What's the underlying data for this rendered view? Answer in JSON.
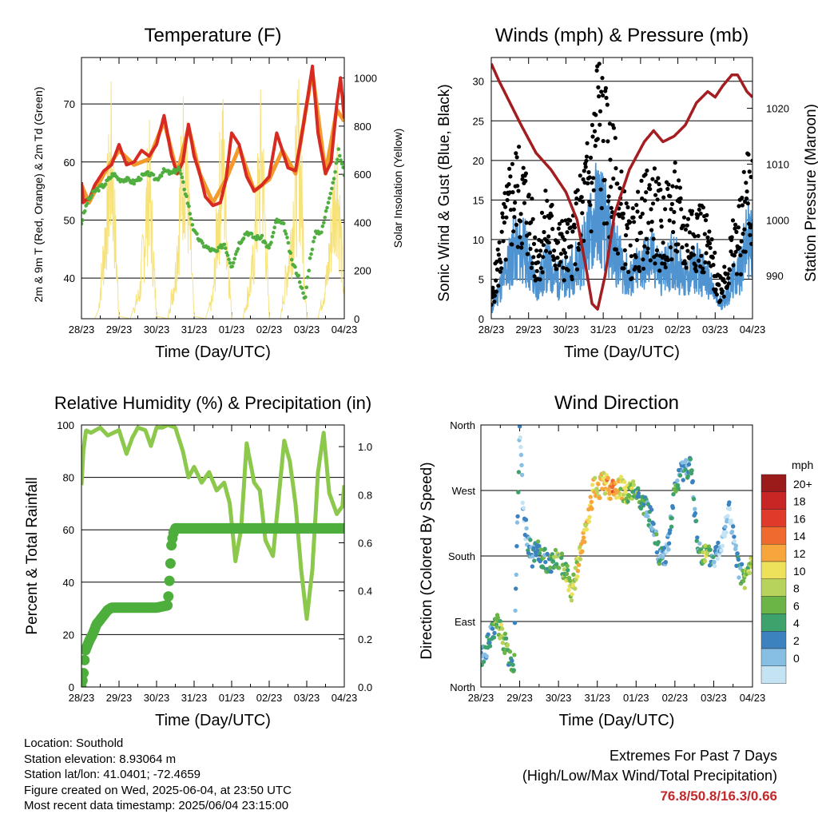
{
  "colors": {
    "temp": "#d62a22",
    "temp9m": "#f39a2c",
    "dewpoint": "#4fae3e",
    "solar": "#f7e27a",
    "wind": "#4f94d0",
    "gust": "#000000",
    "pressure": "#a41d21",
    "rh": "#8cc84b",
    "precip": "#4dae3c"
  },
  "info": {
    "location": "Location: Southold",
    "elevation": "Station elevation: 8.93064 m",
    "latlon": "Station lat/lon: 41.0401; -72.4659",
    "created": "Figure created on Wed, 2025-06-04, at 23:50 UTC",
    "recent": "Most recent data timestamp: 2025/06/04 23:15:00"
  },
  "extremes": {
    "title": "Extremes For Past 7 Days",
    "subtitle": "(High/Low/Max Wind/Total Precipitation)",
    "values": "76.8/50.8/16.3/0.66"
  },
  "chart_data": [
    {
      "type": "line",
      "title": "Temperature (F)",
      "xlabel": "Time (Day/UTC)",
      "ylabel": "2m & 9m T (Red, Orange) & 2m Td (Green)",
      "y2label": "Solar Insolation (Yellow)",
      "x_ticks": [
        "28/23",
        "29/23",
        "30/23",
        "31/23",
        "01/23",
        "02/23",
        "03/23",
        "04/23"
      ],
      "x_range_days": [
        0,
        7
      ],
      "ylim": [
        33,
        78
      ],
      "y_ticks": [
        40,
        50,
        60,
        70
      ],
      "y2lim": [
        0,
        1085
      ],
      "y2_ticks": [
        0,
        200,
        400,
        600,
        800,
        1000
      ],
      "series": [
        {
          "name": "2m T",
          "axis": "left",
          "color_key": "temp",
          "x_days": [
            0,
            0.05,
            0.12,
            0.2,
            0.35,
            0.6,
            0.8,
            1,
            1.2,
            1.4,
            1.6,
            1.8,
            2,
            2.2,
            2.4,
            2.55,
            2.7,
            2.85,
            3,
            3.15,
            3.3,
            3.5,
            3.7,
            3.85,
            4,
            4.2,
            4.4,
            4.6,
            4.8,
            5,
            5.2,
            5.35,
            5.5,
            5.7,
            5.85,
            6,
            6.15,
            6.3,
            6.5,
            6.65,
            6.8,
            6.9,
            7
          ],
          "values": [
            56.5,
            53,
            53.5,
            53.5,
            56,
            58.5,
            59.5,
            63,
            59.5,
            60,
            62,
            61,
            63,
            68,
            61,
            58,
            60,
            66.5,
            61,
            58,
            54,
            52.5,
            53,
            57,
            65,
            63,
            57.5,
            55,
            56,
            57.5,
            65,
            62,
            59,
            58.5,
            64,
            70,
            76.5,
            65,
            58,
            60,
            70,
            74.5,
            67.5
          ]
        },
        {
          "name": "9m T",
          "axis": "left",
          "color_key": "temp9m",
          "x_days": [
            0,
            0.2,
            0.6,
            1,
            1.4,
            1.8,
            2.2,
            2.55,
            2.85,
            3.15,
            3.5,
            3.85,
            4.2,
            4.6,
            5,
            5.35,
            5.7,
            6,
            6.15,
            6.5,
            6.8,
            7
          ],
          "values": [
            56,
            53,
            58,
            62,
            59.5,
            60.5,
            67,
            58,
            66,
            58,
            53,
            57,
            62.5,
            55,
            57,
            62,
            58,
            70,
            75.5,
            58,
            69,
            67
          ]
        },
        {
          "name": "2m Td",
          "axis": "left",
          "color_key": "dewpoint",
          "x_days": [
            0,
            0.15,
            0.35,
            0.6,
            0.85,
            1,
            1.2,
            1.4,
            1.6,
            1.8,
            2,
            2.2,
            2.4,
            2.6,
            2.8,
            3,
            3.2,
            3.4,
            3.6,
            3.8,
            4,
            4.2,
            4.4,
            4.6,
            4.8,
            5,
            5.2,
            5.4,
            5.6,
            5.8,
            5.95,
            6.1,
            6.25,
            6.4,
            6.6,
            6.75,
            6.85,
            7
          ],
          "values": [
            49.5,
            53,
            55,
            56,
            58,
            57,
            57,
            56.5,
            57.5,
            58,
            57,
            58.5,
            58,
            59,
            54,
            48,
            46,
            45,
            44.5,
            46,
            42,
            46,
            48,
            47,
            47,
            45,
            50,
            49,
            43,
            40,
            36,
            44,
            48,
            48,
            54,
            58,
            62,
            58
          ]
        },
        {
          "name": "Solar Insolation",
          "axis": "right",
          "color_key": "solar",
          "x_days": [
            0.35,
            0.45,
            0.6,
            0.8,
            1.0,
            1.3,
            1.55,
            1.8,
            2.0,
            2.3,
            2.5,
            2.75,
            3,
            3.3,
            3.5,
            3.75,
            4,
            4.3,
            4.55,
            4.8,
            5,
            5.3,
            5.55,
            5.8,
            6,
            6.3,
            6.55,
            6.8,
            7
          ],
          "values": [
            0,
            35,
            350,
            820,
            10,
            0,
            130,
            700,
            10,
            0,
            220,
            920,
            10,
            0,
            100,
            850,
            0,
            0,
            230,
            860,
            0,
            0,
            350,
            870,
            0,
            0,
            210,
            760,
            80
          ]
        }
      ]
    },
    {
      "type": "scatter",
      "title": "Winds (mph) & Pressure (mb)",
      "xlabel": "Time (Day/UTC)",
      "ylabel": "Sonic Wind & Gust (Blue, Black)",
      "y2label": "Station Pressure (Maroon)",
      "x_ticks": [
        "28/23",
        "29/23",
        "30/23",
        "31/23",
        "01/23",
        "02/23",
        "03/23",
        "04/23"
      ],
      "ylim": [
        0,
        33
      ],
      "y_ticks": [
        0,
        5,
        10,
        15,
        20,
        25,
        30
      ],
      "y2lim": [
        982.3,
        1029.1
      ],
      "y2_ticks": [
        990,
        1000,
        1010,
        1020
      ],
      "series": [
        {
          "name": "Gust",
          "axis": "left",
          "color_key": "gust",
          "x_days": [
            0,
            0.3,
            0.6,
            0.9,
            1.2,
            1.5,
            1.8,
            2.1,
            2.4,
            2.7,
            2.85,
            3.0,
            3.2,
            3.4,
            3.7,
            4.0,
            4.3,
            4.6,
            4.9,
            5.2,
            5.5,
            5.8,
            6.1,
            6.3,
            6.5,
            6.7,
            6.9,
            7
          ],
          "values": [
            2,
            10,
            16,
            15,
            8,
            12,
            9,
            9,
            13,
            19,
            26,
            22,
            18,
            15,
            9,
            12,
            14,
            11,
            14,
            10,
            12,
            9,
            4,
            6,
            9,
            11,
            17,
            15
          ]
        },
        {
          "name": "Sonic Wind",
          "axis": "left",
          "color_key": "wind",
          "x_days": [
            0,
            0.3,
            0.6,
            0.9,
            1.2,
            1.5,
            1.8,
            2.1,
            2.4,
            2.7,
            2.85,
            3.0,
            3.2,
            3.4,
            3.7,
            4.0,
            4.3,
            4.6,
            4.9,
            5.2,
            5.5,
            5.8,
            6.1,
            6.3,
            6.5,
            6.7,
            6.9,
            7
          ],
          "values": [
            1,
            5,
            9,
            9,
            4,
            7,
            5,
            6,
            8,
            12,
            15,
            13,
            10,
            8,
            5,
            7,
            8,
            6,
            8,
            5,
            7,
            5,
            2,
            3,
            5,
            7,
            11,
            9
          ]
        },
        {
          "name": "Station Pressure",
          "axis": "right",
          "color_key": "pressure",
          "x_days": [
            0,
            0.2,
            0.5,
            0.8,
            1.2,
            1.6,
            2,
            2.3,
            2.55,
            2.7,
            2.85,
            3.05,
            3.3,
            3.7,
            4.1,
            4.35,
            4.6,
            4.9,
            5.2,
            5.5,
            5.8,
            6,
            6.2,
            6.45,
            6.6,
            6.85,
            7
          ],
          "values": [
            1028,
            1025,
            1021,
            1017,
            1012,
            1009,
            1005,
            1000,
            991,
            985,
            984,
            990,
            1001,
            1009,
            1014,
            1016,
            1014,
            1015,
            1017,
            1021,
            1023,
            1022,
            1024,
            1026,
            1026,
            1023,
            1022
          ]
        }
      ]
    },
    {
      "type": "line",
      "title": "Relative Humidity (%) & Precipitation (in)",
      "xlabel": "Time (Day/UTC)",
      "ylabel": "Percent & Total Rainfall",
      "x_ticks": [
        "28/23",
        "29/23",
        "30/23",
        "31/23",
        "01/23",
        "02/23",
        "03/23",
        "04/23"
      ],
      "ylim": [
        0,
        100
      ],
      "y_ticks": [
        0,
        20,
        40,
        60,
        80,
        100
      ],
      "y2lim": [
        0,
        1.09
      ],
      "y2_ticks": [
        "0.0",
        "0.2",
        "0.4",
        "0.6",
        "0.8",
        "1.0"
      ],
      "series": [
        {
          "name": "Relative Humidity",
          "axis": "left",
          "color_key": "rh",
          "x_days": [
            0,
            0.05,
            0.12,
            0.25,
            0.5,
            0.7,
            1.0,
            1.2,
            1.35,
            1.5,
            1.7,
            1.85,
            2.0,
            2.15,
            2.3,
            2.5,
            2.7,
            2.85,
            3.0,
            3.2,
            3.4,
            3.6,
            3.8,
            3.95,
            4.1,
            4.25,
            4.4,
            4.6,
            4.75,
            4.9,
            5.1,
            5.25,
            5.4,
            5.55,
            5.7,
            5.85,
            6.0,
            6.15,
            6.3,
            6.45,
            6.6,
            6.8,
            6.95,
            7
          ],
          "values": [
            77,
            90,
            98,
            97,
            99,
            96,
            98,
            89,
            95,
            99,
            98,
            92,
            99,
            99,
            100,
            99,
            90,
            80,
            84,
            78,
            82,
            75,
            78,
            70,
            48,
            60,
            93,
            78,
            75,
            56,
            50,
            72,
            94,
            86,
            70,
            45,
            26,
            45,
            82,
            97,
            74,
            66,
            69,
            77
          ]
        },
        {
          "name": "Total Precipitation",
          "axis": "right",
          "color_key": "precip",
          "x_days": [
            0,
            0.05,
            0.1,
            0.2,
            0.3,
            0.4,
            0.5,
            0.6,
            0.7,
            0.8,
            1,
            1.5,
            2,
            2.3,
            2.35,
            2.4,
            2.45,
            2.5,
            3,
            4,
            5,
            6,
            7
          ],
          "values": [
            0,
            0.05,
            0.15,
            0.19,
            0.22,
            0.26,
            0.28,
            0.3,
            0.32,
            0.33,
            0.33,
            0.33,
            0.33,
            0.34,
            0.46,
            0.6,
            0.64,
            0.66,
            0.66,
            0.66,
            0.66,
            0.66,
            0.66
          ]
        }
      ]
    },
    {
      "type": "scatter",
      "title": "Wind Direction",
      "xlabel": "Time (Day/UTC)",
      "ylabel": "Direction (Colored By Speed)",
      "x_ticks": [
        "28/23",
        "29/23",
        "30/23",
        "31/23",
        "01/23",
        "02/23",
        "03/23",
        "04/23"
      ],
      "y_ticks": [
        "North",
        "East",
        "South",
        "West",
        "North"
      ],
      "ylim_deg": [
        0,
        360
      ],
      "colorbar": {
        "title": "mph",
        "labels": [
          "20+",
          "18",
          "16",
          "14",
          "12",
          "10",
          "8",
          "6",
          "4",
          "2",
          "0"
        ],
        "colors": [
          "#9b1b1b",
          "#c82525",
          "#e03b2a",
          "#ef6a2e",
          "#f7a63e",
          "#ede15b",
          "#b7d35b",
          "#6ab546",
          "#3ea26d",
          "#3c82bf",
          "#87bfe4",
          "#c4e4f4"
        ]
      },
      "series": [
        {
          "name": "Direction",
          "x_days": [
            0,
            0.2,
            0.4,
            0.55,
            0.7,
            0.85,
            1.0,
            1.1,
            1.3,
            1.5,
            1.7,
            2.0,
            2.2,
            2.35,
            2.5,
            2.65,
            2.9,
            3.2,
            3.4,
            3.6,
            3.8,
            4.0,
            4.2,
            4.4,
            4.6,
            4.8,
            5.0,
            5.2,
            5.4,
            5.6,
            5.8,
            6.0,
            6.2,
            6.4,
            6.6,
            6.8,
            6.9,
            7
          ],
          "values_deg": [
            40,
            60,
            90,
            70,
            45,
            30,
            355,
            230,
            180,
            185,
            170,
            175,
            160,
            130,
            170,
            200,
            270,
            280,
            270,
            275,
            265,
            270,
            250,
            230,
            180,
            185,
            270,
            300,
            305,
            190,
            180,
            175,
            200,
            245,
            170,
            145,
            160,
            170
          ],
          "speeds": [
            4,
            6,
            8,
            10,
            9,
            7,
            4,
            3,
            5,
            7,
            6,
            8,
            10,
            11,
            12,
            14,
            12,
            14,
            16,
            12,
            10,
            8,
            6,
            4,
            6,
            3,
            8,
            4,
            6,
            5,
            10,
            4,
            2,
            2,
            4,
            8,
            10,
            10
          ]
        }
      ]
    }
  ]
}
